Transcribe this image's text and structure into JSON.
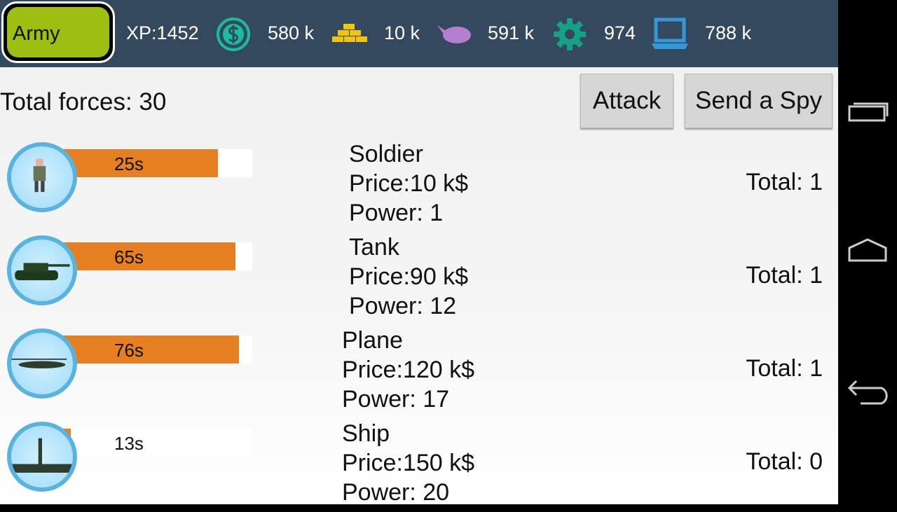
{
  "header": {
    "tab_label": "Army",
    "xp": "XP:1452",
    "stats": [
      {
        "icon": "dollar-coin-icon",
        "value": "580 k",
        "color": "#1abc9c"
      },
      {
        "icon": "gold-bars-icon",
        "value": "10 k",
        "color": "#f1c40f"
      },
      {
        "icon": "meat-icon",
        "value": "591 k",
        "color": "#b57fd0"
      },
      {
        "icon": "gear-icon",
        "value": "974",
        "color": "#16a085"
      },
      {
        "icon": "laptop-icon",
        "value": "788 k",
        "color": "#3498db"
      }
    ]
  },
  "total_forces": "Total forces: 30",
  "buttons": {
    "attack": "Attack",
    "spy": "Send a Spy"
  },
  "units": [
    {
      "name": "Soldier",
      "price": "Price:10 k$",
      "power": "Power: 1",
      "total": "Total: 1",
      "timer": "25s",
      "progress": 0.82
    },
    {
      "name": "Tank",
      "price": "Price:90 k$",
      "power": "Power: 12",
      "total": "Total: 1",
      "timer": "65s",
      "progress": 0.91
    },
    {
      "name": "Plane",
      "price": "Price:120 k$",
      "power": "Power: 17",
      "total": "Total: 1",
      "timer": "76s",
      "progress": 0.93
    },
    {
      "name": "Ship",
      "price": "Price:150 k$",
      "power": "Power: 20",
      "total": "Total: 0",
      "timer": "13s",
      "progress": 0.04
    }
  ],
  "colors": {
    "topbar": "#34495e",
    "progress": "#e67e22",
    "army": "#9cbf12"
  }
}
